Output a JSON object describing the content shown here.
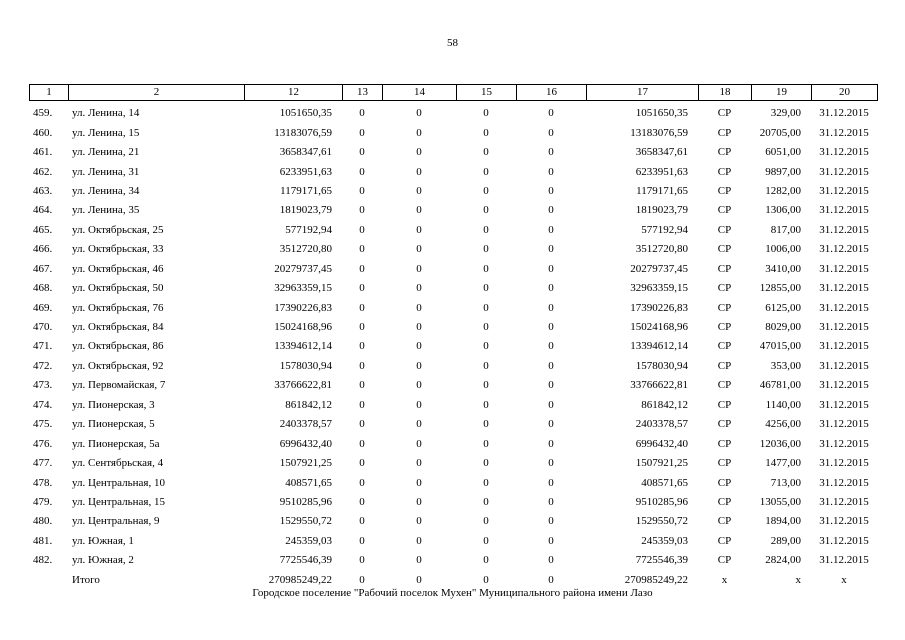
{
  "page_number": "58",
  "header": [
    "1",
    "2",
    "12",
    "13",
    "14",
    "15",
    "16",
    "17",
    "18",
    "19",
    "20"
  ],
  "rows": [
    {
      "n": "459.",
      "addr": "ул. Ленина, 14",
      "c12": "1051650,35",
      "c13": "0",
      "c14": "0",
      "c15": "0",
      "c16": "0",
      "c17": "1051650,35",
      "c18": "СР",
      "c19": "329,00",
      "c20": "31.12.2015"
    },
    {
      "n": "460.",
      "addr": "ул. Ленина, 15",
      "c12": "13183076,59",
      "c13": "0",
      "c14": "0",
      "c15": "0",
      "c16": "0",
      "c17": "13183076,59",
      "c18": "СР",
      "c19": "20705,00",
      "c20": "31.12.2015"
    },
    {
      "n": "461.",
      "addr": "ул. Ленина, 21",
      "c12": "3658347,61",
      "c13": "0",
      "c14": "0",
      "c15": "0",
      "c16": "0",
      "c17": "3658347,61",
      "c18": "СР",
      "c19": "6051,00",
      "c20": "31.12.2015"
    },
    {
      "n": "462.",
      "addr": "ул. Ленина, 31",
      "c12": "6233951,63",
      "c13": "0",
      "c14": "0",
      "c15": "0",
      "c16": "0",
      "c17": "6233951,63",
      "c18": "СР",
      "c19": "9897,00",
      "c20": "31.12.2015"
    },
    {
      "n": "463.",
      "addr": "ул. Ленина, 34",
      "c12": "1179171,65",
      "c13": "0",
      "c14": "0",
      "c15": "0",
      "c16": "0",
      "c17": "1179171,65",
      "c18": "СР",
      "c19": "1282,00",
      "c20": "31.12.2015"
    },
    {
      "n": "464.",
      "addr": "ул. Ленина, 35",
      "c12": "1819023,79",
      "c13": "0",
      "c14": "0",
      "c15": "0",
      "c16": "0",
      "c17": "1819023,79",
      "c18": "СР",
      "c19": "1306,00",
      "c20": "31.12.2015"
    },
    {
      "n": "465.",
      "addr": "ул. Октябрьская, 25",
      "c12": "577192,94",
      "c13": "0",
      "c14": "0",
      "c15": "0",
      "c16": "0",
      "c17": "577192,94",
      "c18": "СР",
      "c19": "817,00",
      "c20": "31.12.2015"
    },
    {
      "n": "466.",
      "addr": "ул. Октябрьская, 33",
      "c12": "3512720,80",
      "c13": "0",
      "c14": "0",
      "c15": "0",
      "c16": "0",
      "c17": "3512720,80",
      "c18": "СР",
      "c19": "1006,00",
      "c20": "31.12.2015"
    },
    {
      "n": "467.",
      "addr": "ул. Октябрьская, 46",
      "c12": "20279737,45",
      "c13": "0",
      "c14": "0",
      "c15": "0",
      "c16": "0",
      "c17": "20279737,45",
      "c18": "СР",
      "c19": "3410,00",
      "c20": "31.12.2015"
    },
    {
      "n": "468.",
      "addr": "ул. Октябрьская, 50",
      "c12": "32963359,15",
      "c13": "0",
      "c14": "0",
      "c15": "0",
      "c16": "0",
      "c17": "32963359,15",
      "c18": "СР",
      "c19": "12855,00",
      "c20": "31.12.2015"
    },
    {
      "n": "469.",
      "addr": "ул. Октябрьская, 76",
      "c12": "17390226,83",
      "c13": "0",
      "c14": "0",
      "c15": "0",
      "c16": "0",
      "c17": "17390226,83",
      "c18": "СР",
      "c19": "6125,00",
      "c20": "31.12.2015"
    },
    {
      "n": "470.",
      "addr": "ул. Октябрьская, 84",
      "c12": "15024168,96",
      "c13": "0",
      "c14": "0",
      "c15": "0",
      "c16": "0",
      "c17": "15024168,96",
      "c18": "СР",
      "c19": "8029,00",
      "c20": "31.12.2015"
    },
    {
      "n": "471.",
      "addr": "ул. Октябрьская, 86",
      "c12": "13394612,14",
      "c13": "0",
      "c14": "0",
      "c15": "0",
      "c16": "0",
      "c17": "13394612,14",
      "c18": "СР",
      "c19": "47015,00",
      "c20": "31.12.2015"
    },
    {
      "n": "472.",
      "addr": "ул. Октябрьская, 92",
      "c12": "1578030,94",
      "c13": "0",
      "c14": "0",
      "c15": "0",
      "c16": "0",
      "c17": "1578030,94",
      "c18": "СР",
      "c19": "353,00",
      "c20": "31.12.2015"
    },
    {
      "n": "473.",
      "addr": "ул. Первомайская, 7",
      "c12": "33766622,81",
      "c13": "0",
      "c14": "0",
      "c15": "0",
      "c16": "0",
      "c17": "33766622,81",
      "c18": "СР",
      "c19": "46781,00",
      "c20": "31.12.2015"
    },
    {
      "n": "474.",
      "addr": "ул. Пионерская, 3",
      "c12": "861842,12",
      "c13": "0",
      "c14": "0",
      "c15": "0",
      "c16": "0",
      "c17": "861842,12",
      "c18": "СР",
      "c19": "1140,00",
      "c20": "31.12.2015"
    },
    {
      "n": "475.",
      "addr": "ул. Пионерская, 5",
      "c12": "2403378,57",
      "c13": "0",
      "c14": "0",
      "c15": "0",
      "c16": "0",
      "c17": "2403378,57",
      "c18": "СР",
      "c19": "4256,00",
      "c20": "31.12.2015"
    },
    {
      "n": "476.",
      "addr": "ул. Пионерская, 5а",
      "c12": "6996432,40",
      "c13": "0",
      "c14": "0",
      "c15": "0",
      "c16": "0",
      "c17": "6996432,40",
      "c18": "СР",
      "c19": "12036,00",
      "c20": "31.12.2015"
    },
    {
      "n": "477.",
      "addr": "ул. Сентябрьская, 4",
      "c12": "1507921,25",
      "c13": "0",
      "c14": "0",
      "c15": "0",
      "c16": "0",
      "c17": "1507921,25",
      "c18": "СР",
      "c19": "1477,00",
      "c20": "31.12.2015"
    },
    {
      "n": "478.",
      "addr": "ул. Центральная, 10",
      "c12": "408571,65",
      "c13": "0",
      "c14": "0",
      "c15": "0",
      "c16": "0",
      "c17": "408571,65",
      "c18": "СР",
      "c19": "713,00",
      "c20": "31.12.2015"
    },
    {
      "n": "479.",
      "addr": "ул. Центральная, 15",
      "c12": "9510285,96",
      "c13": "0",
      "c14": "0",
      "c15": "0",
      "c16": "0",
      "c17": "9510285,96",
      "c18": "СР",
      "c19": "13055,00",
      "c20": "31.12.2015"
    },
    {
      "n": "480.",
      "addr": "ул. Центральная, 9",
      "c12": "1529550,72",
      "c13": "0",
      "c14": "0",
      "c15": "0",
      "c16": "0",
      "c17": "1529550,72",
      "c18": "СР",
      "c19": "1894,00",
      "c20": "31.12.2015"
    },
    {
      "n": "481.",
      "addr": "ул. Южная, 1",
      "c12": "245359,03",
      "c13": "0",
      "c14": "0",
      "c15": "0",
      "c16": "0",
      "c17": "245359,03",
      "c18": "СР",
      "c19": "289,00",
      "c20": "31.12.2015"
    },
    {
      "n": "482.",
      "addr": "ул. Южная, 2",
      "c12": "7725546,39",
      "c13": "0",
      "c14": "0",
      "c15": "0",
      "c16": "0",
      "c17": "7725546,39",
      "c18": "СР",
      "c19": "2824,00",
      "c20": "31.12.2015"
    }
  ],
  "total": {
    "n": "",
    "addr": "Итого",
    "c12": "270985249,22",
    "c13": "0",
    "c14": "0",
    "c15": "0",
    "c16": "0",
    "c17": "270985249,22",
    "c18": "х",
    "c19": "х",
    "c20": "х"
  },
  "footer": "Городское поселение \"Рабочий поселок Мухен\" Муниципального района имени Лазо"
}
